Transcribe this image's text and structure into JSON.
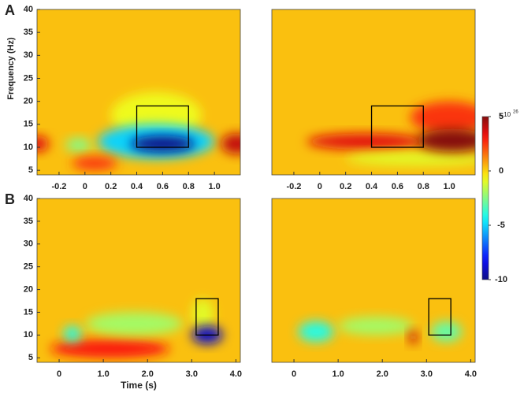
{
  "chart_data": [
    {
      "type": "heatmap",
      "panel_label": "A",
      "ylabel": "Frequency (Hz)",
      "xlim": [
        -0.37,
        1.2
      ],
      "ylim": [
        4,
        40
      ],
      "xticks": [
        -0.2,
        0,
        0.2,
        0.4,
        0.6,
        0.8,
        {
          "value": 1,
          "label": "1.0"
        }
      ],
      "yticks": [
        5,
        10,
        15,
        20,
        25,
        30,
        35,
        40
      ],
      "background": 0.3,
      "blobs": [
        {
          "t": [
            0.2,
            0.9
          ],
          "f": [
            12,
            22
          ],
          "value": -0.8
        },
        {
          "t": [
            0.1,
            1.0
          ],
          "f": [
            7.5,
            15
          ],
          "value": -5
        },
        {
          "t": [
            0.35,
            0.85
          ],
          "f": [
            9,
            12.5
          ],
          "value": -10
        },
        {
          "t": [
            1.05,
            1.3
          ],
          "f": [
            8.5,
            13
          ],
          "value": 4
        },
        {
          "t": [
            -0.45,
            -0.28
          ],
          "f": [
            9,
            12.5
          ],
          "value": 3.5
        },
        {
          "t": [
            -0.15,
            0.05
          ],
          "f": [
            9,
            12
          ],
          "value": -2.5
        },
        {
          "t": [
            -0.1,
            0.25
          ],
          "f": [
            5,
            8
          ],
          "value": 2.5
        }
      ],
      "window": {
        "t": [
          0.4,
          0.8
        ],
        "f": [
          10,
          19
        ]
      }
    },
    {
      "type": "heatmap",
      "xlim": [
        -0.37,
        1.2
      ],
      "ylim": [
        4,
        40
      ],
      "xticks": [
        -0.2,
        0,
        0.2,
        0.4,
        0.6,
        0.8,
        {
          "value": 1,
          "label": "1.0"
        }
      ],
      "background": 0.3,
      "blobs": [
        {
          "t": [
            0.7,
            1.3
          ],
          "f": [
            13,
            20
          ],
          "value": 2.5
        },
        {
          "t": [
            -0.1,
            0.8
          ],
          "f": [
            9.5,
            13
          ],
          "value": 3.5
        },
        {
          "t": [
            0.2,
            1.3
          ],
          "f": [
            6,
            9
          ],
          "value": -1
        },
        {
          "t": [
            0.75,
            1.3
          ],
          "f": [
            9,
            14
          ],
          "value": 5
        }
      ],
      "window": {
        "t": [
          0.4,
          0.8
        ],
        "f": [
          10,
          19
        ]
      }
    },
    {
      "type": "heatmap",
      "panel_label": "B",
      "xlabel": "Time (s)",
      "xlim": [
        -0.5,
        4.1
      ],
      "ylim": [
        4,
        40
      ],
      "xticks": [
        0,
        {
          "value": 1,
          "label": "1.0"
        },
        {
          "value": 2,
          "label": "2.0"
        },
        {
          "value": 3,
          "label": "3.0"
        },
        {
          "value": 4,
          "label": "4.0"
        }
      ],
      "yticks": [
        5,
        10,
        15,
        20,
        25,
        30,
        35,
        40
      ],
      "background": 0.3,
      "blobs": [
        {
          "t": [
            -0.2,
            2.5
          ],
          "f": [
            5,
            9
          ],
          "value": 3
        },
        {
          "t": [
            0.6,
            2.8
          ],
          "f": [
            10,
            15
          ],
          "value": -2
        },
        {
          "t": [
            0.1,
            0.5
          ],
          "f": [
            8.5,
            12
          ],
          "value": -4
        },
        {
          "t": [
            3.0,
            3.5
          ],
          "f": [
            11,
            18
          ],
          "value": -1
        },
        {
          "t": [
            3.0,
            3.7
          ],
          "f": [
            8,
            12
          ],
          "value": -9
        }
      ],
      "window": {
        "t": [
          3.1,
          3.6
        ],
        "f": [
          10,
          18
        ]
      }
    },
    {
      "type": "heatmap",
      "xlim": [
        -0.5,
        4.1
      ],
      "ylim": [
        4,
        40
      ],
      "xticks": [
        0,
        {
          "value": 1,
          "label": "1.0"
        },
        {
          "value": 2,
          "label": "2.0"
        },
        {
          "value": 3,
          "label": "3.0"
        },
        {
          "value": 4,
          "label": "4.0"
        }
      ],
      "background": 0.3,
      "blobs": [
        {
          "t": [
            0.1,
            0.9
          ],
          "f": [
            8.5,
            13
          ],
          "value": -4
        },
        {
          "t": [
            1.0,
            2.7
          ],
          "f": [
            10,
            14
          ],
          "value": -2
        },
        {
          "t": [
            2.6,
            2.8
          ],
          "f": [
            8,
            11
          ],
          "value": 4
        },
        {
          "t": [
            3.1,
            3.8
          ],
          "f": [
            8.5,
            13
          ],
          "value": -3
        }
      ],
      "window": {
        "t": [
          3.05,
          3.55
        ],
        "f": [
          10,
          18
        ]
      }
    }
  ],
  "colorbar": {
    "lim": [
      -10,
      5
    ],
    "ticks": [
      5,
      0,
      -5,
      -10
    ],
    "multiplier": "x 10",
    "exponent": "26"
  }
}
